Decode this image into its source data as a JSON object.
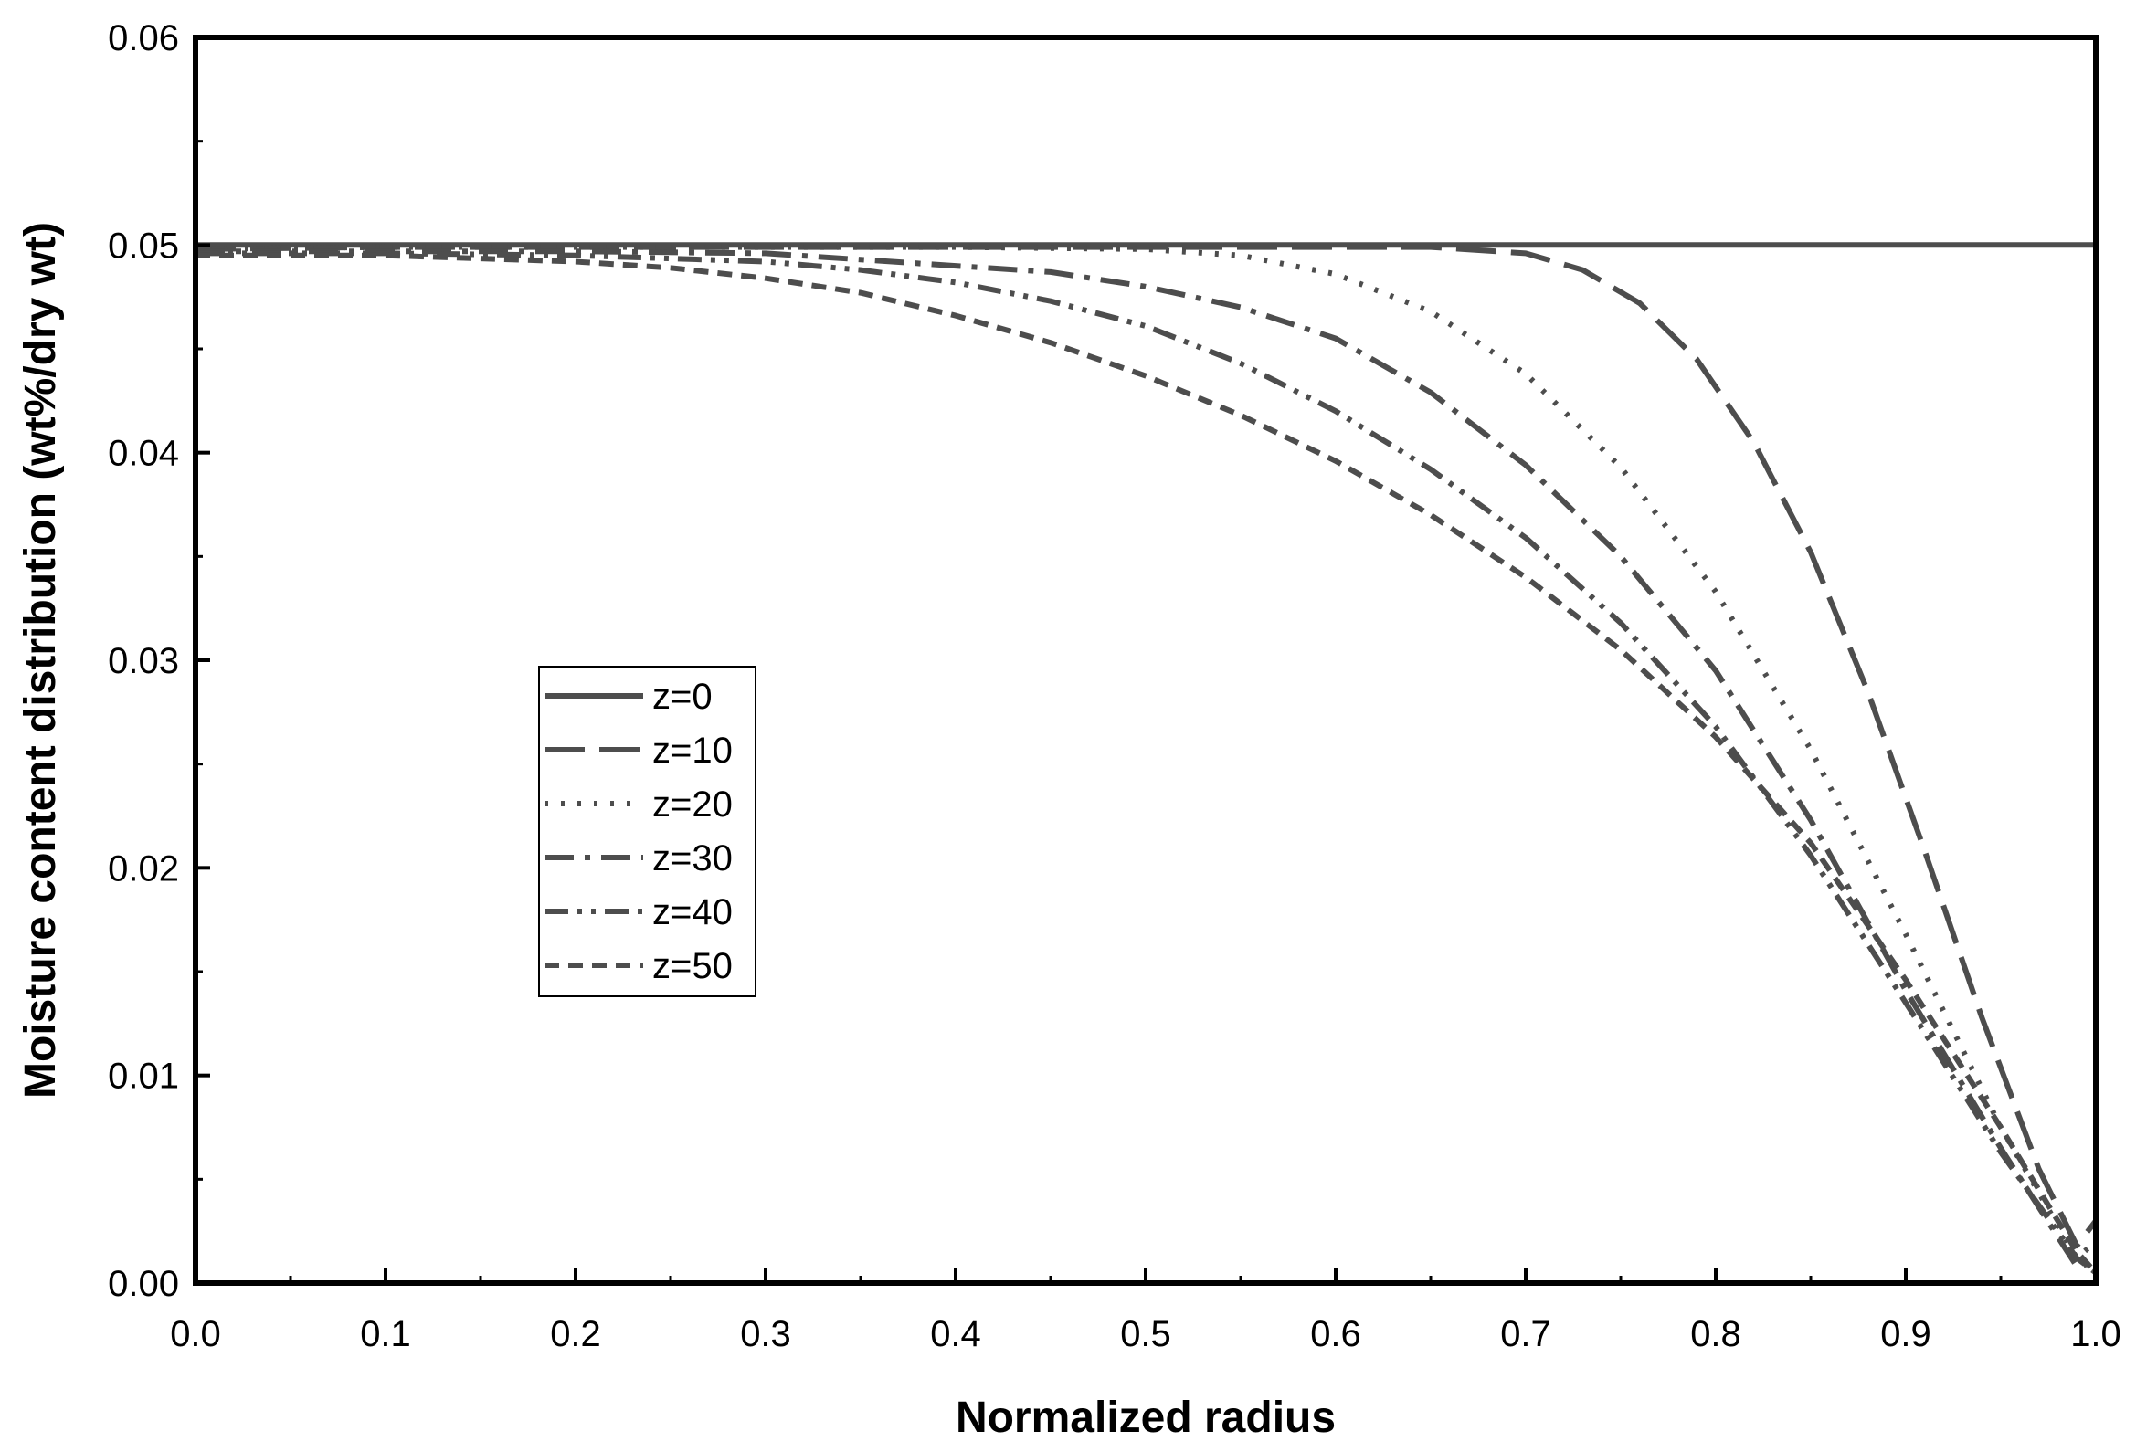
{
  "chart_data": {
    "type": "line",
    "xlabel": "Normalized radius",
    "ylabel": "Moisture content distribution (wt%/dry wt)",
    "xlim": [
      0.0,
      1.0
    ],
    "ylim": [
      0.0,
      0.06
    ],
    "xticks": [
      "0.0",
      "0.1",
      "0.2",
      "0.3",
      "0.4",
      "0.5",
      "0.6",
      "0.7",
      "0.8",
      "0.9",
      "1.0"
    ],
    "yticks": [
      "0.00",
      "0.01",
      "0.02",
      "0.03",
      "0.04",
      "0.05",
      "0.06"
    ],
    "grid": false,
    "legend_position": "center-left",
    "line_color": "#4d4d4d",
    "series": [
      {
        "name": "z=0",
        "dash": "solid",
        "x": [
          0.0,
          0.2,
          0.4,
          0.6,
          0.8,
          1.0
        ],
        "y": [
          0.05,
          0.05,
          0.05,
          0.05,
          0.05,
          0.05
        ]
      },
      {
        "name": "z=10",
        "dash": "dash",
        "x": [
          0.0,
          0.1,
          0.2,
          0.3,
          0.4,
          0.5,
          0.6,
          0.65,
          0.7,
          0.73,
          0.76,
          0.79,
          0.82,
          0.85,
          0.88,
          0.91,
          0.94,
          0.97,
          0.99,
          1.0
        ],
        "y": [
          0.0498,
          0.0499,
          0.0499,
          0.0499,
          0.0499,
          0.0499,
          0.0499,
          0.0499,
          0.0496,
          0.0488,
          0.0472,
          0.0445,
          0.0405,
          0.0352,
          0.0285,
          0.0208,
          0.0128,
          0.0055,
          0.0018,
          0.003
        ]
      },
      {
        "name": "z=20",
        "dash": "dot",
        "x": [
          0.0,
          0.1,
          0.2,
          0.3,
          0.4,
          0.5,
          0.55,
          0.6,
          0.65,
          0.7,
          0.75,
          0.8,
          0.85,
          0.9,
          0.95,
          0.99,
          1.0
        ],
        "y": [
          0.0498,
          0.0499,
          0.0499,
          0.0499,
          0.0499,
          0.0498,
          0.0495,
          0.0486,
          0.0468,
          0.0438,
          0.0393,
          0.0333,
          0.0257,
          0.0168,
          0.0075,
          0.0012,
          0.002
        ]
      },
      {
        "name": "z=30",
        "dash": "dashdot",
        "x": [
          0.0,
          0.1,
          0.2,
          0.3,
          0.4,
          0.45,
          0.5,
          0.55,
          0.6,
          0.65,
          0.7,
          0.75,
          0.8,
          0.85,
          0.9,
          0.95,
          0.99,
          1.0
        ],
        "y": [
          0.0497,
          0.0497,
          0.0497,
          0.0496,
          0.049,
          0.0487,
          0.048,
          0.047,
          0.0455,
          0.0429,
          0.0394,
          0.035,
          0.0295,
          0.0223,
          0.0141,
          0.0065,
          0.0008,
          0.001
        ]
      },
      {
        "name": "z=40",
        "dash": "dashdotdot",
        "x": [
          0.0,
          0.1,
          0.2,
          0.3,
          0.35,
          0.4,
          0.45,
          0.5,
          0.55,
          0.6,
          0.65,
          0.7,
          0.75,
          0.8,
          0.85,
          0.9,
          0.95,
          0.99,
          1.0
        ],
        "y": [
          0.0496,
          0.0496,
          0.0495,
          0.0492,
          0.0488,
          0.0482,
          0.0473,
          0.0461,
          0.0443,
          0.042,
          0.0392,
          0.0359,
          0.0318,
          0.0268,
          0.0206,
          0.0135,
          0.0063,
          0.0012,
          0.0005
        ]
      },
      {
        "name": "z=50",
        "dash": "shortdash",
        "x": [
          0.0,
          0.1,
          0.2,
          0.25,
          0.3,
          0.35,
          0.4,
          0.45,
          0.5,
          0.55,
          0.6,
          0.65,
          0.7,
          0.75,
          0.8,
          0.85,
          0.9,
          0.95,
          0.99,
          1.0
        ],
        "y": [
          0.0495,
          0.0495,
          0.0492,
          0.0489,
          0.0484,
          0.0477,
          0.0466,
          0.0453,
          0.0437,
          0.0418,
          0.0396,
          0.037,
          0.034,
          0.0305,
          0.0263,
          0.0212,
          0.0146,
          0.0075,
          0.0015,
          0.0005
        ]
      }
    ]
  }
}
